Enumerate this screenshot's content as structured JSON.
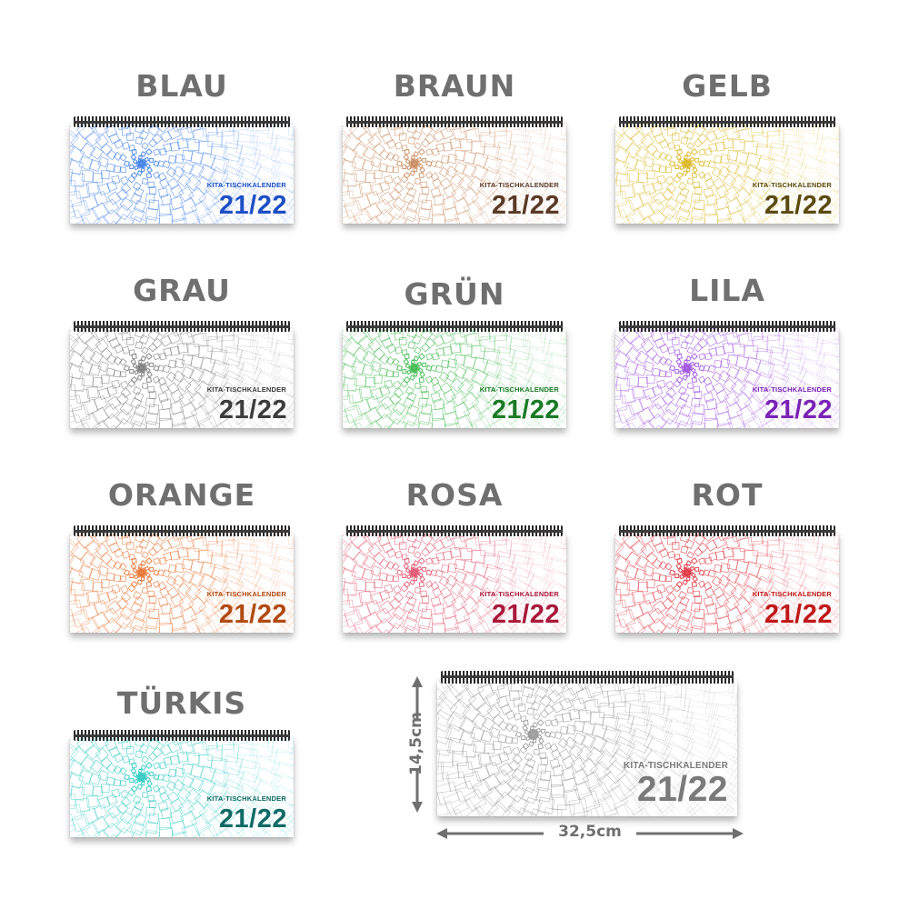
{
  "calendar_kicker": "KITA-TISCHKALENDER",
  "calendar_year": "21/22",
  "variants": [
    {
      "name": "BLAU",
      "color": "#1d4fc4"
    },
    {
      "name": "BRAUN",
      "color": "#5a3a26"
    },
    {
      "name": "GELB",
      "color": "#5a4a10"
    },
    {
      "name": "GRAU",
      "color": "#3c3c3c"
    },
    {
      "name": "GRÜN",
      "color": "#1a7a26"
    },
    {
      "name": "LILA",
      "color": "#7a23b5"
    },
    {
      "name": "ORANGE",
      "color": "#b04a10"
    },
    {
      "name": "ROSA",
      "color": "#a8183a"
    },
    {
      "name": "ROT",
      "color": "#c01818"
    },
    {
      "name": "TÜRKIS",
      "color": "#0f6a66"
    }
  ],
  "pattern_colors": [
    "#3c7ee8",
    "#c88a5c",
    "#d8b41c",
    "#7a7a7a",
    "#3cb84a",
    "#9c4ee0",
    "#e8702c",
    "#e0506c",
    "#e0303c",
    "#28c8c0"
  ],
  "sample": {
    "color": "#7a7a7a",
    "pattern_color": "#9a9a9a",
    "height_label": "14,5cm",
    "width_label": "32,5cm"
  }
}
